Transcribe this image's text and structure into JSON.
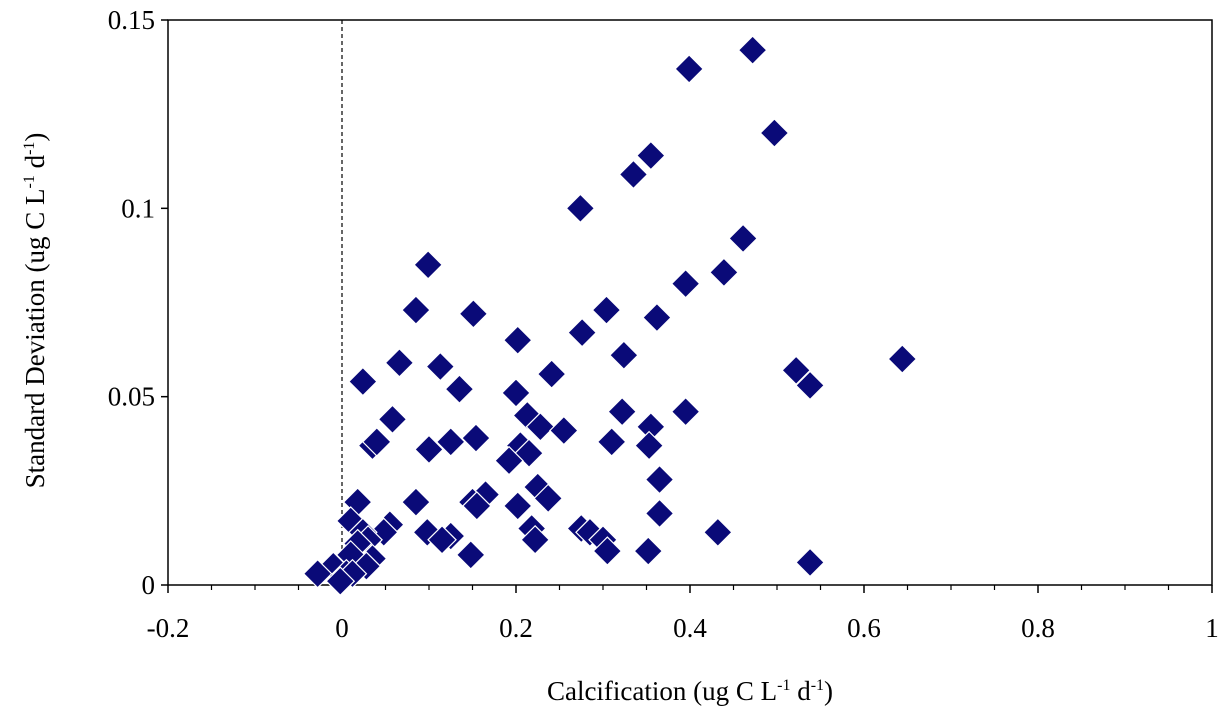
{
  "chart_data": {
    "type": "scatter",
    "xlabel": {
      "prefix": "Calcification (ug C L",
      "sup1": "-1",
      "mid": " d",
      "sup2": "-1",
      "suffix": ")"
    },
    "ylabel": {
      "prefix": "Standard Deviation (ug C L",
      "sup1": "-1",
      "mid": " d",
      "sup2": "-1",
      "suffix": ")"
    },
    "xlim": [
      -0.2,
      1.0
    ],
    "ylim": [
      0,
      0.15
    ],
    "x_ticks": [
      -0.2,
      0,
      0.2,
      0.4,
      0.6,
      0.8,
      1
    ],
    "x_tick_labels": [
      "-0.2",
      "0",
      "0.2",
      "0.4",
      "0.6",
      "0.8",
      "1"
    ],
    "y_ticks": [
      0,
      0.05,
      0.1,
      0.15
    ],
    "y_tick_labels": [
      "0",
      "0.05",
      "0.1",
      "0.15"
    ],
    "x_minor_step": 0.05,
    "reference_line": {
      "x": 0,
      "style": "dashed"
    },
    "marker": "diamond",
    "marker_color": "#0a0a78",
    "grid": false,
    "points": [
      [
        0.472,
        0.142
      ],
      [
        0.399,
        0.137
      ],
      [
        0.497,
        0.12
      ],
      [
        0.355,
        0.114
      ],
      [
        0.335,
        0.109
      ],
      [
        0.274,
        0.1
      ],
      [
        0.461,
        0.092
      ],
      [
        0.099,
        0.085
      ],
      [
        0.439,
        0.083
      ],
      [
        0.395,
        0.08
      ],
      [
        0.085,
        0.073
      ],
      [
        0.151,
        0.072
      ],
      [
        0.304,
        0.073
      ],
      [
        0.362,
        0.071
      ],
      [
        0.276,
        0.067
      ],
      [
        0.202,
        0.065
      ],
      [
        0.644,
        0.06
      ],
      [
        0.066,
        0.059
      ],
      [
        0.324,
        0.061
      ],
      [
        0.113,
        0.058
      ],
      [
        0.522,
        0.057
      ],
      [
        0.241,
        0.056
      ],
      [
        0.024,
        0.054
      ],
      [
        0.135,
        0.052
      ],
      [
        0.538,
        0.053
      ],
      [
        0.2,
        0.051
      ],
      [
        0.058,
        0.044
      ],
      [
        0.213,
        0.045
      ],
      [
        0.322,
        0.046
      ],
      [
        0.395,
        0.046
      ],
      [
        0.355,
        0.042
      ],
      [
        0.228,
        0.042
      ],
      [
        0.255,
        0.041
      ],
      [
        0.035,
        0.037
      ],
      [
        0.04,
        0.038
      ],
      [
        0.1,
        0.036
      ],
      [
        0.125,
        0.038
      ],
      [
        0.154,
        0.039
      ],
      [
        0.31,
        0.038
      ],
      [
        0.353,
        0.037
      ],
      [
        0.205,
        0.037
      ],
      [
        0.215,
        0.035
      ],
      [
        0.192,
        0.033
      ],
      [
        0.365,
        0.028
      ],
      [
        0.225,
        0.026
      ],
      [
        0.237,
        0.023
      ],
      [
        0.165,
        0.024
      ],
      [
        0.15,
        0.022
      ],
      [
        0.155,
        0.021
      ],
      [
        0.085,
        0.022
      ],
      [
        0.018,
        0.022
      ],
      [
        0.202,
        0.021
      ],
      [
        0.365,
        0.019
      ],
      [
        0.01,
        0.017
      ],
      [
        0.055,
        0.016
      ],
      [
        0.048,
        0.014
      ],
      [
        0.024,
        0.014
      ],
      [
        0.275,
        0.015
      ],
      [
        0.218,
        0.015
      ],
      [
        0.285,
        0.014
      ],
      [
        0.098,
        0.014
      ],
      [
        0.125,
        0.013
      ],
      [
        0.3,
        0.012
      ],
      [
        0.432,
        0.014
      ],
      [
        0.222,
        0.012
      ],
      [
        0.115,
        0.012
      ],
      [
        0.03,
        0.012
      ],
      [
        0.018,
        0.011
      ],
      [
        0.305,
        0.009
      ],
      [
        0.352,
        0.009
      ],
      [
        0.148,
        0.008
      ],
      [
        0.538,
        0.006
      ],
      [
        0.035,
        0.007
      ],
      [
        0.01,
        0.008
      ],
      [
        -0.01,
        0.005
      ],
      [
        0.028,
        0.005
      ],
      [
        -0.028,
        0.003
      ],
      [
        0.005,
        0.003
      ],
      [
        0.012,
        0.003
      ],
      [
        -0.002,
        0.001
      ]
    ]
  }
}
